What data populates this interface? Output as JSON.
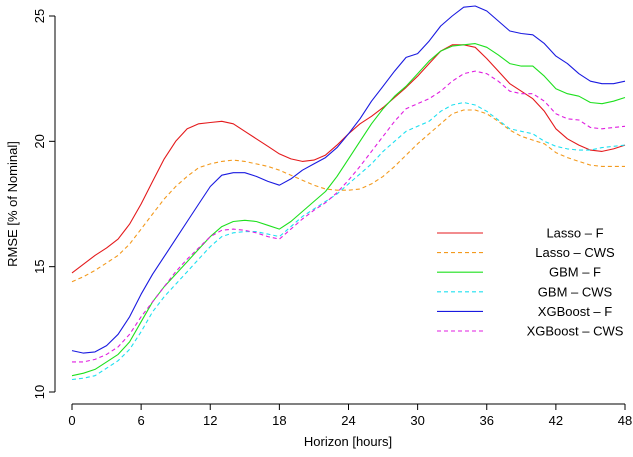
{
  "chart_data": {
    "type": "line",
    "title": "",
    "xlabel": "Horizon [hours]",
    "ylabel": "RMSE [% of Nominal]",
    "xlim": [
      0,
      48
    ],
    "ylim": [
      10,
      25
    ],
    "xticks": [
      0,
      6,
      12,
      18,
      24,
      30,
      36,
      42,
      48
    ],
    "yticks": [
      10,
      15,
      20,
      25
    ],
    "grid": false,
    "legend_position": "right",
    "x": [
      0,
      1,
      2,
      3,
      4,
      5,
      6,
      7,
      8,
      9,
      10,
      11,
      12,
      13,
      14,
      15,
      16,
      17,
      18,
      19,
      20,
      21,
      22,
      23,
      24,
      25,
      26,
      27,
      28,
      29,
      30,
      31,
      32,
      33,
      34,
      35,
      36,
      37,
      38,
      39,
      40,
      41,
      42,
      43,
      44,
      45,
      46,
      47,
      48
    ],
    "series": [
      {
        "name": "Lasso – F",
        "color": "#e41a1c",
        "dash": "solid",
        "values": [
          14.75,
          15.1,
          15.45,
          15.75,
          16.1,
          16.7,
          17.5,
          18.4,
          19.3,
          20.0,
          20.5,
          20.7,
          20.75,
          20.8,
          20.7,
          20.4,
          20.1,
          19.8,
          19.5,
          19.3,
          19.2,
          19.25,
          19.45,
          19.85,
          20.3,
          20.7,
          21.0,
          21.35,
          21.75,
          22.15,
          22.6,
          23.1,
          23.6,
          23.85,
          23.85,
          23.75,
          23.3,
          22.8,
          22.3,
          22.0,
          21.7,
          21.2,
          20.5,
          20.1,
          19.85,
          19.65,
          19.6,
          19.7,
          19.85
        ]
      },
      {
        "name": "Lasso – CWS",
        "color": "#f39a1e",
        "dash": "dashed",
        "values": [
          14.4,
          14.6,
          14.85,
          15.15,
          15.45,
          15.9,
          16.5,
          17.1,
          17.7,
          18.2,
          18.6,
          18.95,
          19.1,
          19.2,
          19.25,
          19.2,
          19.1,
          19.0,
          18.85,
          18.65,
          18.45,
          18.25,
          18.1,
          18.05,
          18.05,
          18.1,
          18.3,
          18.6,
          19.0,
          19.45,
          19.9,
          20.3,
          20.7,
          21.1,
          21.25,
          21.25,
          21.1,
          20.8,
          20.45,
          20.2,
          20.05,
          19.9,
          19.55,
          19.35,
          19.2,
          19.05,
          19.0,
          19.0,
          19.0
        ]
      },
      {
        "name": "GBM – F",
        "color": "#1ee01e",
        "dash": "solid",
        "values": [
          10.65,
          10.75,
          10.9,
          11.2,
          11.5,
          12.0,
          12.8,
          13.6,
          14.2,
          14.7,
          15.2,
          15.7,
          16.2,
          16.6,
          16.8,
          16.85,
          16.8,
          16.65,
          16.5,
          16.8,
          17.2,
          17.6,
          18.0,
          18.6,
          19.3,
          20.0,
          20.7,
          21.3,
          21.8,
          22.2,
          22.7,
          23.2,
          23.6,
          23.8,
          23.85,
          23.9,
          23.75,
          23.45,
          23.1,
          23.0,
          23.0,
          22.6,
          22.1,
          21.9,
          21.8,
          21.55,
          21.5,
          21.6,
          21.75
        ]
      },
      {
        "name": "GBM – CWS",
        "color": "#1ee0f0",
        "dash": "dashed",
        "values": [
          10.5,
          10.55,
          10.65,
          10.95,
          11.25,
          11.7,
          12.4,
          13.2,
          13.8,
          14.3,
          14.8,
          15.3,
          15.8,
          16.2,
          16.35,
          16.4,
          16.4,
          16.3,
          16.2,
          16.6,
          17.0,
          17.3,
          17.6,
          17.9,
          18.3,
          18.7,
          19.1,
          19.6,
          20.0,
          20.4,
          20.6,
          20.8,
          21.2,
          21.45,
          21.55,
          21.45,
          21.2,
          20.85,
          20.5,
          20.4,
          20.3,
          20.0,
          19.8,
          19.7,
          19.65,
          19.65,
          19.75,
          19.8,
          19.85
        ]
      },
      {
        "name": "XGBoost – F",
        "color": "#1a1ae0",
        "dash": "solid",
        "values": [
          11.65,
          11.55,
          11.6,
          11.85,
          12.3,
          13.0,
          13.9,
          14.7,
          15.4,
          16.1,
          16.8,
          17.5,
          18.2,
          18.65,
          18.75,
          18.75,
          18.6,
          18.4,
          18.25,
          18.5,
          18.85,
          19.1,
          19.35,
          19.75,
          20.3,
          20.9,
          21.6,
          22.2,
          22.8,
          23.35,
          23.5,
          24.0,
          24.6,
          25.0,
          25.35,
          25.4,
          25.2,
          24.8,
          24.4,
          24.3,
          24.25,
          23.9,
          23.4,
          23.1,
          22.7,
          22.4,
          22.3,
          22.3,
          22.4
        ]
      },
      {
        "name": "XGBoost – CWS",
        "color": "#e01ee0",
        "dash": "dashed",
        "values": [
          11.2,
          11.2,
          11.3,
          11.5,
          11.8,
          12.3,
          13.0,
          13.6,
          14.2,
          14.8,
          15.3,
          15.75,
          16.2,
          16.45,
          16.5,
          16.45,
          16.35,
          16.2,
          16.1,
          16.5,
          16.9,
          17.25,
          17.55,
          17.95,
          18.45,
          19.0,
          19.6,
          20.2,
          20.8,
          21.3,
          21.5,
          21.7,
          22.0,
          22.4,
          22.7,
          22.8,
          22.7,
          22.4,
          22.0,
          21.9,
          21.9,
          21.6,
          21.1,
          20.9,
          20.85,
          20.55,
          20.5,
          20.55,
          20.6
        ]
      }
    ]
  }
}
